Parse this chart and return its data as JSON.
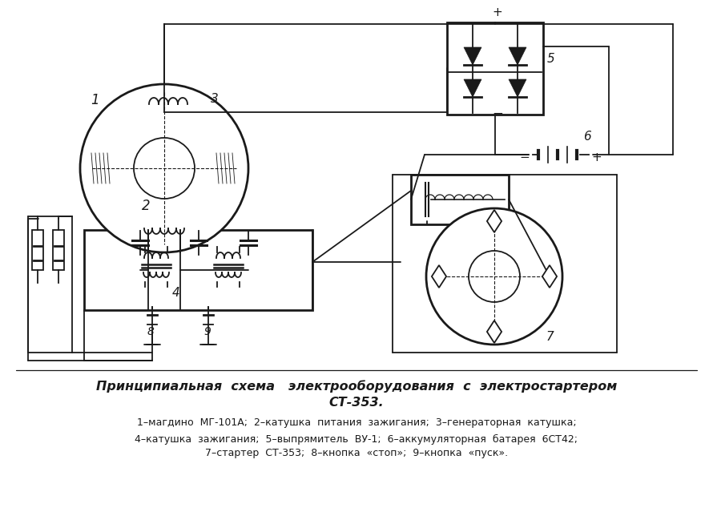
{
  "bg_color": "#ffffff",
  "line_color": "#1a1a1a",
  "title_line1": "Принципиальная  схема   электрооборудования  с  электростартером",
  "title_line2": "СТ-353.",
  "legend_line1": "1–магдино  МГ-101А;  2–катушка  питания  зажигания;  3–генераторная  катушка;",
  "legend_line2": "4–катушка  зажигания;  5–выпрямитель  ВУ-1;  6–аккумуляторная  батарея  6СТ42;",
  "legend_line3": "7–стартер  СТ-353;  8–кнопка  «стоп»;  9–кнопка  «пуск».",
  "figsize": [
    8.9,
    6.44
  ],
  "dpi": 100
}
